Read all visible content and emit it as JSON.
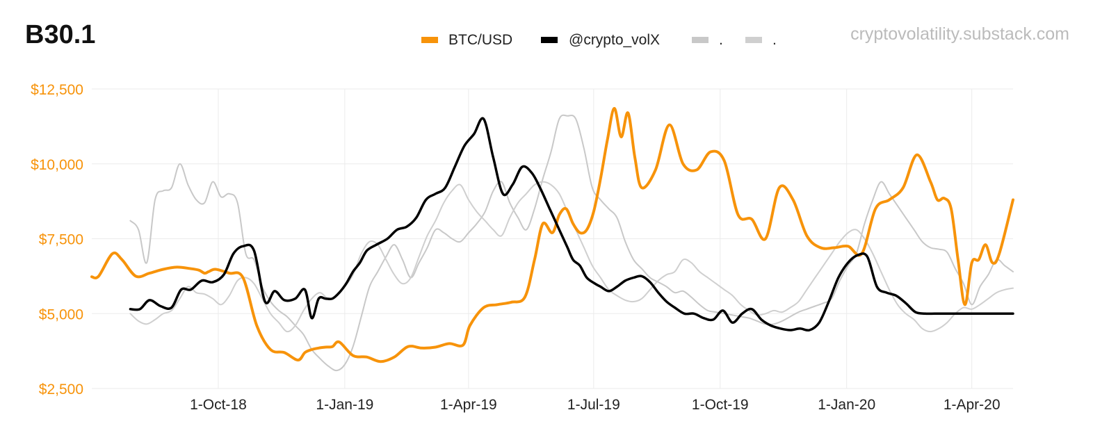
{
  "chart_data": {
    "type": "line",
    "title": "B30.1",
    "source": "cryptovolatility.substack.com",
    "xlabel": "",
    "ylabel": "",
    "x_ticks": [
      "1-Oct-18",
      "1-Jan-19",
      "1-Apr-19",
      "1-Jul-19",
      "1-Oct-19",
      "1-Jan-20",
      "1-Apr-20"
    ],
    "x_tick_days": [
      92,
      184,
      274,
      365,
      457,
      549,
      640
    ],
    "xlim": [
      0,
      670
    ],
    "y_ticks": [
      "$2,500",
      "$5,000",
      "$7,500",
      "$10,000",
      "$12,500"
    ],
    "y_tick_values": [
      2500,
      5000,
      7500,
      10000,
      12500
    ],
    "ylim": [
      2500,
      12500
    ],
    "grid": true,
    "legend_position": "top",
    "colors": {
      "btc": "#f7930a",
      "volx": "#000000",
      "gray1": "#c8c8c8",
      "gray2": "#cfcfcf",
      "ytick": "#f7930a",
      "grid": "#ebebeb"
    },
    "series": [
      {
        "name": "BTC/USD",
        "legend_label": "BTC/USD",
        "color": "#f7930a",
        "width": 4,
        "x": [
          0,
          5,
          15,
          22,
          32,
          42,
          52,
          62,
          72,
          78,
          82,
          85,
          90,
          100,
          110,
          120,
          130,
          140,
          150,
          155,
          160,
          165,
          170,
          175,
          180,
          190,
          200,
          210,
          220,
          230,
          240,
          250,
          260,
          270,
          275,
          285,
          295,
          305,
          315,
          322,
          328,
          335,
          340,
          345,
          350,
          355,
          360,
          365,
          370,
          375,
          380,
          385,
          390,
          395,
          400,
          410,
          420,
          430,
          440,
          450,
          460,
          470,
          480,
          490,
          500,
          510,
          520,
          530,
          540,
          550,
          560,
          570,
          580,
          590,
          600,
          610,
          615,
          620,
          625,
          630,
          635,
          640,
          645,
          650,
          655,
          660,
          670
        ],
        "y": [
          6230,
          6250,
          7000,
          6800,
          6250,
          6350,
          6480,
          6550,
          6500,
          6450,
          6350,
          6400,
          6480,
          6350,
          6200,
          4600,
          3800,
          3700,
          3450,
          3700,
          3800,
          3850,
          3880,
          3900,
          4050,
          3600,
          3550,
          3400,
          3550,
          3900,
          3850,
          3880,
          4000,
          3950,
          4600,
          5200,
          5300,
          5380,
          5550,
          6800,
          8000,
          7700,
          8300,
          8500,
          8000,
          7700,
          7800,
          8400,
          9500,
          10800,
          11850,
          10900,
          11700,
          10200,
          9200,
          9800,
          11300,
          10000,
          9800,
          10400,
          10100,
          8300,
          8150,
          7500,
          9200,
          8800,
          7600,
          7200,
          7200,
          7250,
          7000,
          8500,
          8800,
          9200,
          10300,
          9400,
          8800,
          8850,
          8500,
          6800,
          5300,
          6700,
          6800,
          7300,
          6700,
          7000,
          8800
        ]
      },
      {
        "name": "@crypto_volX",
        "legend_label": "@crypto_volX",
        "color": "#000000",
        "width": 3.5,
        "x": [
          28,
          35,
          42,
          50,
          58,
          65,
          72,
          80,
          88,
          96,
          103,
          110,
          118,
          126,
          133,
          140,
          148,
          155,
          160,
          165,
          170,
          175,
          180,
          185,
          190,
          195,
          200,
          207,
          215,
          222,
          229,
          236,
          243,
          250,
          257,
          264,
          271,
          278,
          285,
          292,
          299,
          306,
          313,
          320,
          326,
          333,
          340,
          346,
          350,
          355,
          360,
          366,
          370,
          376,
          382,
          388,
          394,
          400,
          406,
          412,
          418,
          424,
          431,
          438,
          445,
          452,
          459,
          466,
          473,
          480,
          487,
          494,
          501,
          508,
          515,
          522,
          529,
          536,
          543,
          550,
          557,
          564,
          571,
          578,
          585,
          592,
          599,
          606,
          613,
          620,
          627,
          634,
          641,
          648,
          655,
          662,
          670
        ],
        "y": [
          5150,
          5150,
          5450,
          5250,
          5200,
          5800,
          5800,
          6100,
          6050,
          6300,
          7000,
          7250,
          7100,
          5400,
          5750,
          5450,
          5500,
          5800,
          4850,
          5500,
          5500,
          5500,
          5700,
          6000,
          6400,
          6700,
          7100,
          7300,
          7500,
          7800,
          7900,
          8200,
          8800,
          9000,
          9200,
          9900,
          10600,
          11000,
          11500,
          10200,
          9000,
          9300,
          9900,
          9700,
          9200,
          8500,
          7800,
          7200,
          6800,
          6600,
          6200,
          6000,
          5900,
          5750,
          5900,
          6100,
          6200,
          6250,
          6050,
          5700,
          5400,
          5200,
          5000,
          5000,
          4850,
          4800,
          5100,
          4700,
          5000,
          5150,
          4800,
          4600,
          4500,
          4450,
          4500,
          4450,
          4700,
          5400,
          6200,
          6700,
          6950,
          6900,
          5900,
          5700,
          5600,
          5350,
          5050,
          5000,
          5000,
          5000,
          5000,
          5000,
          5000,
          5000,
          5000,
          5000,
          5000
        ]
      },
      {
        "name": ".",
        "legend_label": ".",
        "color": "#c8c8c8",
        "width": 2,
        "x": [
          28,
          34,
          40,
          46,
          52,
          58,
          64,
          70,
          76,
          82,
          88,
          94,
          100,
          106,
          112,
          118,
          124,
          130,
          136,
          142,
          148,
          154,
          160,
          166,
          172,
          178,
          184,
          190,
          196,
          202,
          208,
          214,
          220,
          226,
          232,
          238,
          244,
          250,
          256,
          262,
          268,
          274,
          280,
          286,
          292,
          298,
          304,
          310,
          316,
          322,
          328,
          334,
          340,
          346,
          352,
          358,
          364,
          370,
          376,
          382,
          388,
          394,
          400,
          406,
          412,
          418,
          424,
          430,
          436,
          442,
          448,
          454,
          460,
          466,
          472,
          478,
          484,
          490,
          496,
          502,
          508,
          514,
          520,
          526,
          532,
          538,
          544,
          550,
          556,
          562,
          568,
          574,
          580,
          586,
          592,
          598,
          604,
          610,
          616,
          622,
          628,
          634,
          640,
          646,
          652,
          658,
          664,
          670
        ],
        "y": [
          8100,
          7800,
          6700,
          8800,
          9100,
          9200,
          10000,
          9300,
          8800,
          8700,
          9400,
          8900,
          9000,
          8700,
          7000,
          6800,
          5900,
          5400,
          5100,
          4900,
          4600,
          4300,
          3800,
          3500,
          3250,
          3100,
          3300,
          3900,
          4900,
          5900,
          6400,
          6900,
          7300,
          6800,
          6200,
          6700,
          7200,
          7800,
          7700,
          7500,
          7400,
          7700,
          8000,
          8400,
          9100,
          9400,
          8700,
          8200,
          7800,
          8500,
          9500,
          10400,
          11500,
          11600,
          11500,
          10500,
          9200,
          8800,
          8500,
          8200,
          7400,
          6800,
          6500,
          6200,
          6050,
          5900,
          5700,
          5750,
          5550,
          5300,
          5100,
          5050,
          5000,
          4950,
          4900,
          4850,
          4750,
          4650,
          4650,
          4750,
          4900,
          5050,
          5150,
          5250,
          5350,
          5500,
          6100,
          6600,
          7000,
          8000,
          8800,
          9400,
          9000,
          8600,
          8200,
          7800,
          7400,
          7200,
          7150,
          7050,
          6500,
          6000,
          5300,
          5900,
          6300,
          6800,
          6600,
          6400
        ]
      },
      {
        "name": ".",
        "legend_label": ".",
        "color": "#cfcfcf",
        "width": 2,
        "x": [
          28,
          34,
          40,
          46,
          52,
          58,
          64,
          70,
          76,
          82,
          88,
          94,
          100,
          106,
          112,
          118,
          124,
          130,
          136,
          142,
          148,
          154,
          160,
          166,
          172,
          178,
          184,
          190,
          196,
          202,
          208,
          214,
          220,
          226,
          232,
          238,
          244,
          250,
          256,
          262,
          268,
          274,
          280,
          286,
          292,
          298,
          304,
          310,
          316,
          322,
          328,
          334,
          340,
          346,
          352,
          358,
          364,
          370,
          376,
          382,
          388,
          394,
          400,
          406,
          412,
          418,
          424,
          430,
          436,
          442,
          448,
          454,
          460,
          466,
          472,
          478,
          484,
          490,
          496,
          502,
          508,
          514,
          520,
          526,
          532,
          538,
          544,
          550,
          556,
          562,
          568,
          574,
          580,
          586,
          592,
          598,
          604,
          610,
          616,
          622,
          628,
          634,
          640,
          646,
          652,
          658,
          664,
          670
        ],
        "y": [
          5000,
          4750,
          4650,
          4800,
          5000,
          5100,
          5500,
          5900,
          5700,
          5650,
          5500,
          5300,
          5600,
          6100,
          6200,
          6000,
          5500,
          5000,
          4700,
          4400,
          4600,
          5100,
          5500,
          5700,
          5500,
          5600,
          5900,
          6300,
          7000,
          7400,
          7300,
          6800,
          6300,
          6000,
          6200,
          6900,
          7600,
          8100,
          8700,
          9100,
          9300,
          8800,
          8400,
          8100,
          7800,
          7600,
          8200,
          8700,
          9000,
          9300,
          9400,
          9300,
          9000,
          8400,
          7800,
          7200,
          6600,
          6200,
          5800,
          5600,
          5450,
          5400,
          5500,
          5800,
          6100,
          6300,
          6400,
          6800,
          6700,
          6400,
          6200,
          6000,
          5800,
          5600,
          5300,
          5100,
          4950,
          5000,
          5100,
          5050,
          5200,
          5400,
          5800,
          6200,
          6600,
          7000,
          7400,
          7700,
          7800,
          7500,
          7000,
          6400,
          5800,
          5300,
          5000,
          4800,
          4500,
          4400,
          4500,
          4700,
          5000,
          5200,
          5150,
          5300,
          5500,
          5700,
          5800,
          5850
        ]
      }
    ]
  }
}
